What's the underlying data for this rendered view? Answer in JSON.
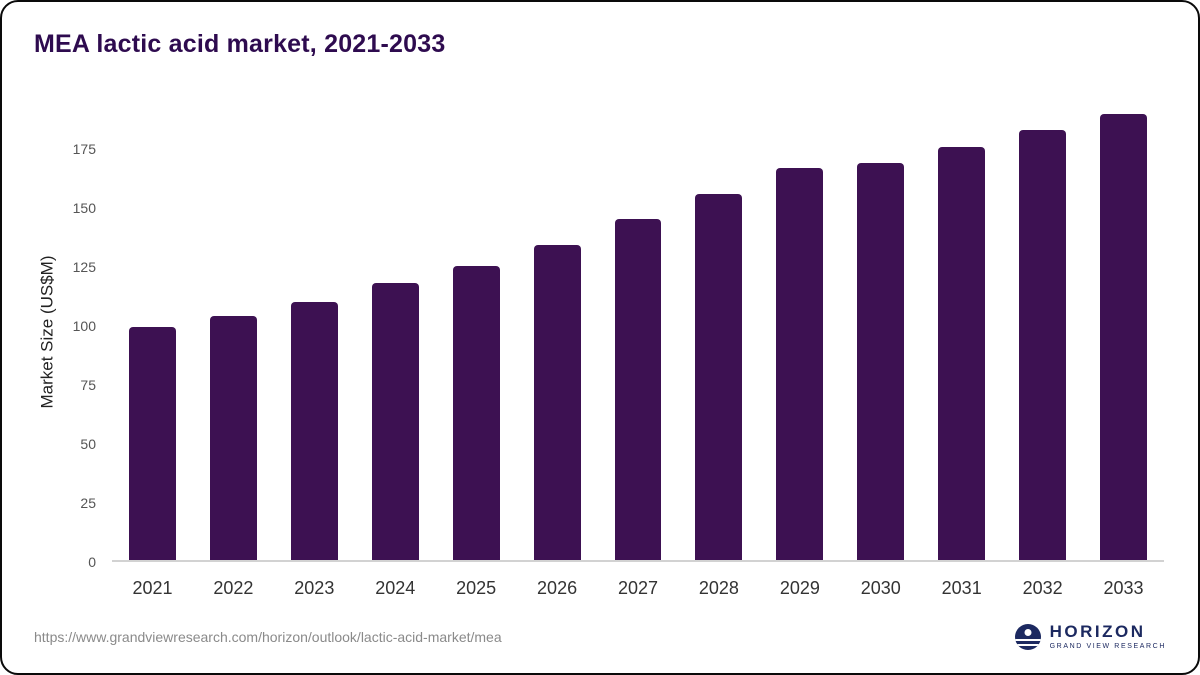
{
  "title": "MEA lactic acid market, 2021-2033",
  "colors": {
    "bar": "#3d1152",
    "title": "#2e0b4f",
    "logo_navy": "#1c2960"
  },
  "chart_data": {
    "type": "bar",
    "title": "MEA lactic acid market, 2021-2033",
    "xlabel": "",
    "ylabel": "Market Size (US$M)",
    "categories": [
      "2021",
      "2022",
      "2023",
      "2024",
      "2025",
      "2026",
      "2027",
      "2028",
      "2029",
      "2030",
      "2031",
      "2032",
      "2033"
    ],
    "values": [
      99,
      104,
      110,
      118,
      125,
      134,
      145,
      156,
      167,
      169,
      176,
      183,
      190
    ],
    "yticks": [
      0,
      25,
      50,
      75,
      100,
      125,
      150,
      175
    ],
    "ylim": [
      0,
      195
    ],
    "grid": false,
    "legend": false,
    "bar_color": "#3d1152"
  },
  "footer": {
    "source_url": "https://www.grandviewresearch.com/horizon/outlook/lactic-acid-market/mea"
  },
  "logo": {
    "name": "HORIZON",
    "subtitle": "GRAND VIEW RESEARCH"
  }
}
